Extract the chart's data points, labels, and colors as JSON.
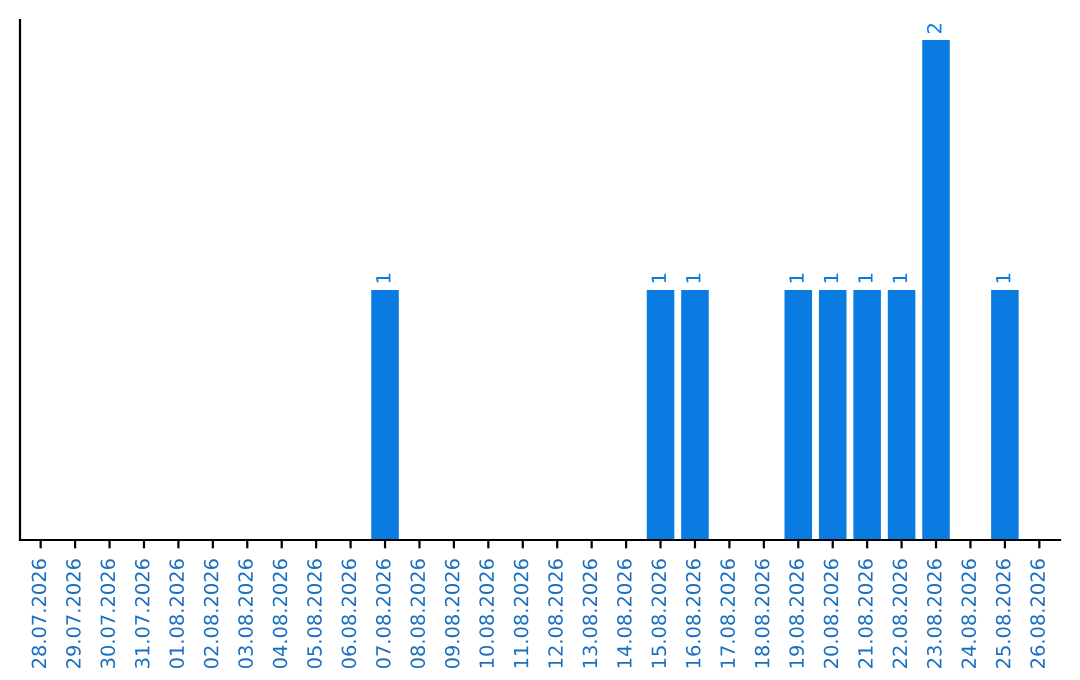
{
  "chart_data": {
    "type": "bar",
    "categories": [
      "28.07.2026",
      "29.07.2026",
      "30.07.2026",
      "31.07.2026",
      "01.08.2026",
      "02.08.2026",
      "03.08.2026",
      "04.08.2026",
      "05.08.2026",
      "06.08.2026",
      "07.08.2026",
      "08.08.2026",
      "09.08.2026",
      "10.08.2026",
      "11.08.2026",
      "12.08.2026",
      "13.08.2026",
      "14.08.2026",
      "15.08.2026",
      "16.08.2026",
      "17.08.2026",
      "18.08.2026",
      "19.08.2026",
      "20.08.2026",
      "21.08.2026",
      "22.08.2026",
      "23.08.2026",
      "24.08.2026",
      "25.08.2026",
      "26.08.2026"
    ],
    "values": [
      0,
      0,
      0,
      0,
      0,
      0,
      0,
      0,
      0,
      0,
      1,
      0,
      0,
      0,
      0,
      0,
      0,
      0,
      1,
      1,
      0,
      0,
      1,
      1,
      1,
      1,
      2,
      0,
      1,
      0
    ],
    "value_labels": [
      null,
      null,
      null,
      null,
      null,
      null,
      null,
      null,
      null,
      null,
      "1",
      null,
      null,
      null,
      null,
      null,
      null,
      null,
      "1",
      "1",
      null,
      null,
      "1",
      "1",
      "1",
      "1",
      "2",
      null,
      "1",
      null
    ],
    "color": "#0a7be0",
    "ylim": [
      0,
      2.08
    ],
    "tick_labels": "x",
    "grid": false
  }
}
